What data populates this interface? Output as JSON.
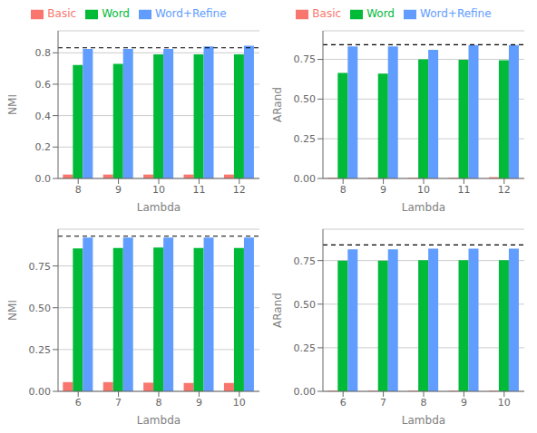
{
  "chart_data": [
    {
      "type": "bar",
      "xlabel": "Lambda",
      "ylabel": "NMI",
      "categories": [
        "8",
        "9",
        "10",
        "11",
        "12"
      ],
      "series": [
        {
          "name": "Basic",
          "color": "#F8766D",
          "values": [
            0.025,
            0.025,
            0.025,
            0.025,
            0.025
          ]
        },
        {
          "name": "Word",
          "color": "#00BA38",
          "values": [
            0.722,
            0.73,
            0.79,
            0.79,
            0.79
          ]
        },
        {
          "name": "Word+Refine",
          "color": "#619CFF",
          "values": [
            0.825,
            0.825,
            0.825,
            0.84,
            0.845
          ]
        }
      ],
      "hline": 0.832,
      "ylim": [
        0,
        0.94
      ],
      "yticks": [
        {
          "value": 0,
          "label": "0.0"
        },
        0.2,
        0.4,
        0.6,
        0.8
      ],
      "grid": true,
      "legend": "top"
    },
    {
      "type": "bar",
      "xlabel": "Lambda",
      "ylabel": "ARand",
      "categories": [
        "8",
        "9",
        "10",
        "11",
        "12"
      ],
      "series": [
        {
          "name": "Basic",
          "color": "#F8766D",
          "values": [
            0.004,
            0.004,
            0.004,
            0.004,
            0.008
          ]
        },
        {
          "name": "Word",
          "color": "#00BA38",
          "values": [
            0.665,
            0.66,
            0.75,
            0.748,
            0.745
          ]
        },
        {
          "name": "Word+Refine",
          "color": "#619CFF",
          "values": [
            0.832,
            0.832,
            0.81,
            0.84,
            0.84
          ]
        }
      ],
      "hline": 0.842,
      "ylim": [
        0,
        0.93
      ],
      "yticks": [
        {
          "value": 0,
          "label": "0.00"
        },
        0.25,
        {
          "value": 0.5,
          "label": "0.50"
        },
        0.75
      ],
      "grid": true,
      "legend": "top"
    },
    {
      "type": "bar",
      "xlabel": "Lambda",
      "ylabel": "NMI",
      "categories": [
        "6",
        "7",
        "8",
        "9",
        "10"
      ],
      "series": [
        {
          "name": "Basic",
          "color": "#F8766D",
          "values": [
            0.055,
            0.055,
            0.052,
            0.05,
            0.05
          ]
        },
        {
          "name": "Word",
          "color": "#00BA38",
          "values": [
            0.855,
            0.858,
            0.86,
            0.858,
            0.857
          ]
        },
        {
          "name": "Word+Refine",
          "color": "#619CFF",
          "values": [
            0.92,
            0.92,
            0.92,
            0.92,
            0.92
          ]
        }
      ],
      "hline": 0.928,
      "ylim": [
        0,
        0.97
      ],
      "yticks": [
        {
          "value": 0,
          "label": "0.00"
        },
        0.25,
        {
          "value": 0.5,
          "label": "0.50"
        },
        0.75
      ],
      "grid": true
    },
    {
      "type": "bar",
      "xlabel": "Lambda",
      "ylabel": "ARand",
      "categories": [
        "6",
        "7",
        "8",
        "9",
        "10"
      ],
      "series": [
        {
          "name": "Basic",
          "color": "#F8766D",
          "values": [
            0.003,
            0.003,
            0.003,
            0.003,
            0.003
          ]
        },
        {
          "name": "Word",
          "color": "#00BA38",
          "values": [
            0.75,
            0.75,
            0.752,
            0.752,
            0.752
          ]
        },
        {
          "name": "Word+Refine",
          "color": "#619CFF",
          "values": [
            0.815,
            0.815,
            0.818,
            0.818,
            0.818
          ]
        }
      ],
      "hline": 0.84,
      "ylim": [
        0,
        0.93
      ],
      "yticks": [
        {
          "value": 0,
          "label": "0.00"
        },
        0.25,
        {
          "value": 0.5,
          "label": "0.50"
        },
        0.75
      ],
      "grid": true
    }
  ]
}
